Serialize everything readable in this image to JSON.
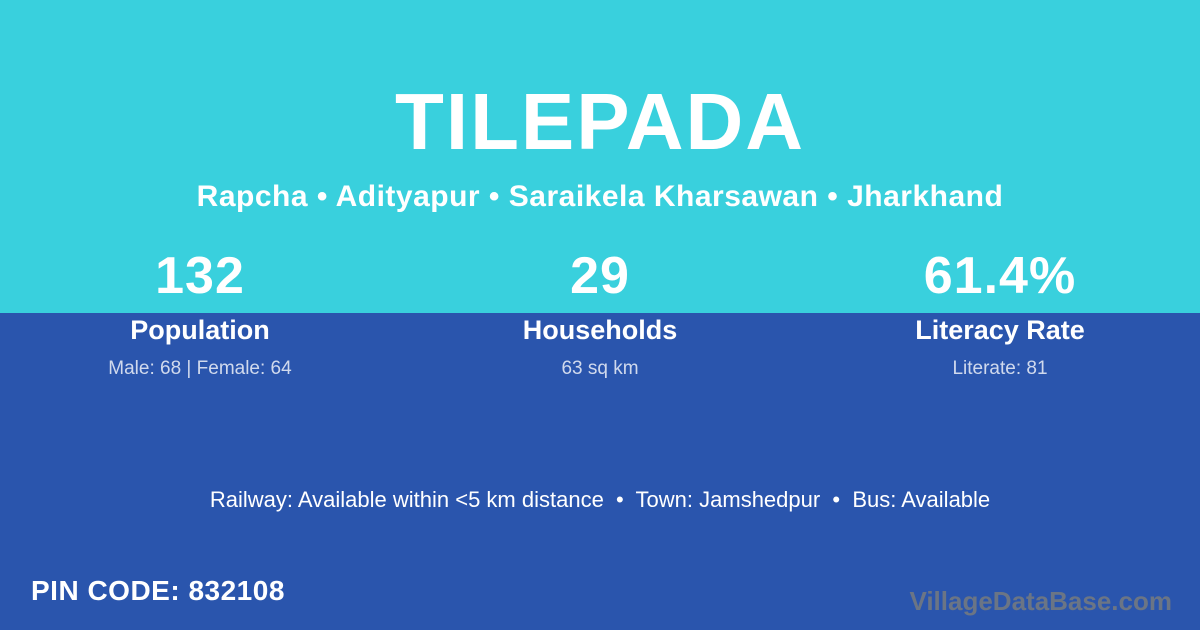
{
  "colors": {
    "top_background": "#39D0DD",
    "bottom_background": "#2A55AD",
    "text_primary": "#FFFFFF",
    "text_muted": "rgba(255,255,255,0.78)",
    "watermark": "#6B7585"
  },
  "header": {
    "village_name": "TILEPADA",
    "breadcrumb": "Rapcha • Adityapur • Saraikela Kharsawan • Jharkhand"
  },
  "stats": [
    {
      "value": "132",
      "label": "Population",
      "detail": "Male: 68 | Female: 64"
    },
    {
      "value": "29",
      "label": "Households",
      "detail": "63 sq km"
    },
    {
      "value": "61.4%",
      "label": "Literacy Rate",
      "detail": "Literate: 81"
    }
  ],
  "amenities": {
    "line": "Railway: Available within <5 km distance  •  Town: Jamshedpur  •  Bus: Available"
  },
  "footer": {
    "pin_code": "PIN CODE: 832108",
    "watermark": "VillageDataBase.com"
  }
}
